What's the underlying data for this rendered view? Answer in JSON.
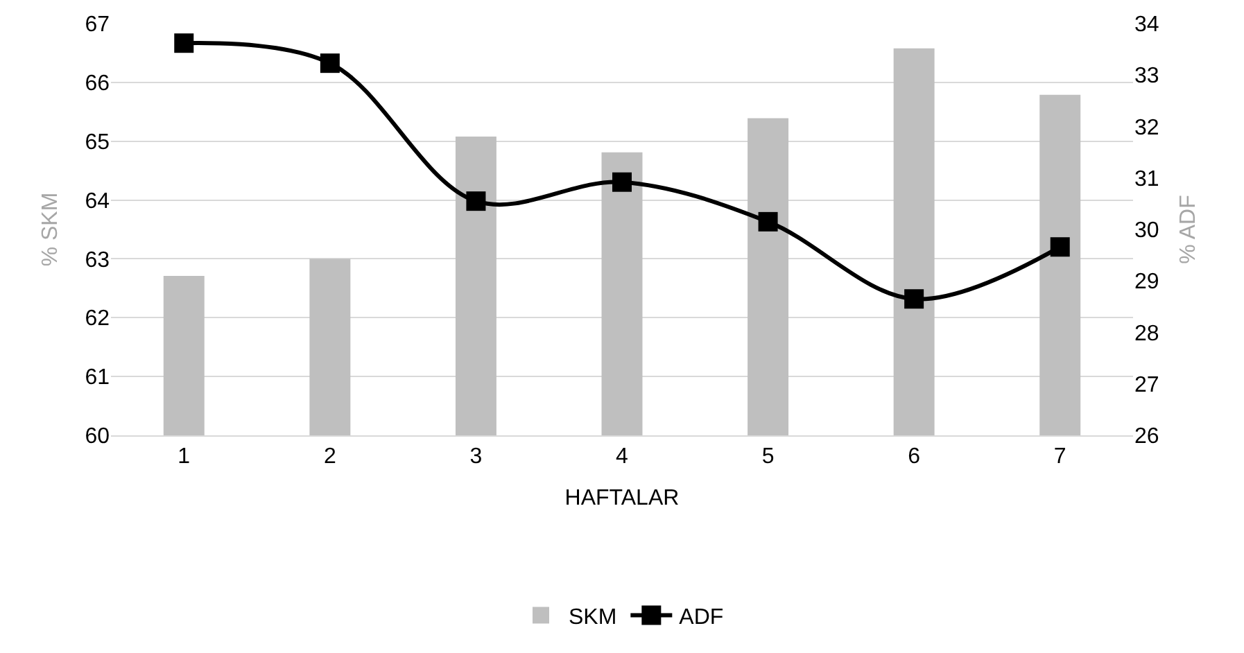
{
  "chart_data": {
    "type": "bar",
    "xlabel": "HAFTALAR",
    "ylabel": "% SKM",
    "y2label": "% ADF",
    "categories": [
      "1",
      "2",
      "3",
      "4",
      "5",
      "6",
      "7"
    ],
    "series": [
      {
        "name": "SKM",
        "color": "#bfbfbf",
        "values": [
          62.71,
          63.0,
          65.08,
          64.81,
          65.39,
          66.58,
          65.79
        ]
      },
      {
        "name": "ADF",
        "type": "line",
        "axis": "y2",
        "color": "#000000",
        "values": [
          33.62,
          33.23,
          30.55,
          30.92,
          30.15,
          28.65,
          29.66
        ]
      }
    ],
    "ylim": [
      60,
      67
    ],
    "yticks": [
      60,
      61,
      62,
      63,
      64,
      65,
      66,
      67
    ],
    "y2lim": [
      26,
      34
    ],
    "y2ticks": [
      26,
      27,
      28,
      29,
      30,
      31,
      32,
      33,
      34
    ],
    "grid": "y",
    "legend": "bottom",
    "marker": "square",
    "line_style": "solid"
  }
}
